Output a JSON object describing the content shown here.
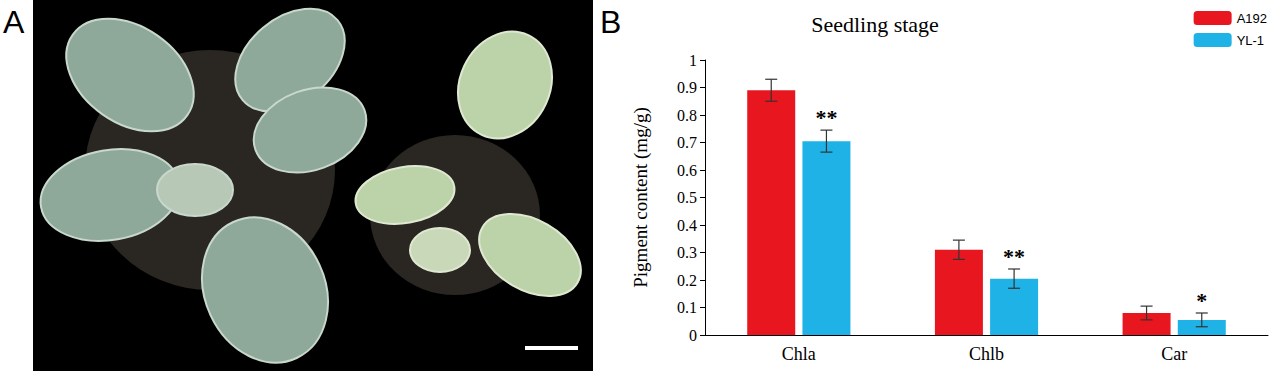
{
  "panel_labels": [
    "A",
    "B"
  ],
  "chart_data": {
    "type": "bar",
    "title": "Seedling stage",
    "y_label": "Pigment content (mg/g)",
    "categories": [
      "Chla",
      "Chlb",
      "Car"
    ],
    "series": [
      {
        "name": "A192",
        "color": "#e8161f",
        "values": [
          0.89,
          0.31,
          0.08
        ],
        "errors": [
          0.04,
          0.035,
          0.025
        ]
      },
      {
        "name": "YL-1",
        "color": "#1fb2e6",
        "values": [
          0.705,
          0.205,
          0.055
        ],
        "errors": [
          0.04,
          0.035,
          0.025
        ],
        "significance": [
          "**",
          "**",
          "*"
        ]
      }
    ],
    "ylim": [
      0,
      1
    ],
    "yticks": [
      0,
      0.1,
      0.2,
      0.3,
      0.4,
      0.5,
      0.6,
      0.7,
      0.8,
      0.9,
      1
    ],
    "grid": false,
    "legend": "upper right"
  }
}
